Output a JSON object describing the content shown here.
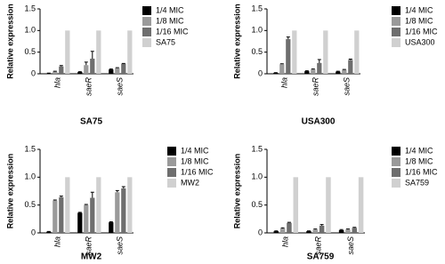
{
  "chart_data": [
    {
      "type": "bar",
      "title": "SA75",
      "y_label": "Relative expression",
      "categories": [
        "hla",
        "saeR",
        "saeS"
      ],
      "series": [
        {
          "name": "1/4 MIC",
          "color": "#000000",
          "values": [
            0.01,
            0.04,
            0.1
          ],
          "errors": [
            0.005,
            0.01,
            0.01
          ]
        },
        {
          "name": "1/8 MIC",
          "color": "#9a9a9a",
          "values": [
            0.05,
            0.2,
            0.13
          ],
          "errors": [
            0.01,
            0.07,
            0.01
          ]
        },
        {
          "name": "1/16 MIC",
          "color": "#6e6e6e",
          "values": [
            0.17,
            0.35,
            0.23
          ],
          "errors": [
            0.02,
            0.17,
            0.01
          ]
        },
        {
          "name": "SA75",
          "color": "#d0d0d0",
          "values": [
            1,
            1,
            1
          ]
        }
      ],
      "ylim": [
        0,
        1.5
      ],
      "yticks": [
        0,
        0.5,
        {
          "value": 1,
          "label": "1.0"
        },
        1.5
      ]
    },
    {
      "type": "bar",
      "title": "USA300",
      "y_label": "Relative expression",
      "categories": [
        "hla",
        "saeR",
        "saeS"
      ],
      "series": [
        {
          "name": "1/4 MIC",
          "color": "#000000",
          "values": [
            0.02,
            0.06,
            0.05
          ],
          "errors": [
            0.005,
            0.01,
            0.01
          ]
        },
        {
          "name": "1/8 MIC",
          "color": "#9a9a9a",
          "values": [
            0.22,
            0.1,
            0.09
          ],
          "errors": [
            0.01,
            0.01,
            0.01
          ]
        },
        {
          "name": "1/16 MIC",
          "color": "#6e6e6e",
          "values": [
            0.8,
            0.25,
            0.32
          ],
          "errors": [
            0.05,
            0.08,
            0.02
          ]
        },
        {
          "name": "USA300",
          "color": "#d0d0d0",
          "values": [
            1,
            1,
            1
          ]
        }
      ],
      "ylim": [
        0,
        1.5
      ],
      "yticks": [
        0,
        0.5,
        {
          "value": 1,
          "label": "1.0"
        },
        1.5
      ]
    },
    {
      "type": "bar",
      "title": "MW2",
      "y_label": "Relative expression",
      "categories": [
        "hla",
        "saeR",
        "saeS"
      ],
      "series": [
        {
          "name": "1/4 MIC",
          "color": "#000000",
          "values": [
            0.02,
            0.36,
            0.19
          ],
          "errors": [
            0.005,
            0.01,
            0.01
          ]
        },
        {
          "name": "1/8 MIC",
          "color": "#9a9a9a",
          "values": [
            0.58,
            0.5,
            0.73
          ],
          "errors": [
            0.01,
            0.01,
            0.03
          ]
        },
        {
          "name": "1/16 MIC",
          "color": "#6e6e6e",
          "values": [
            0.64,
            0.63,
            0.8
          ],
          "errors": [
            0.02,
            0.1,
            0.03
          ]
        },
        {
          "name": "MW2",
          "color": "#d0d0d0",
          "values": [
            1,
            1,
            1
          ]
        }
      ],
      "ylim": [
        0,
        1.5
      ],
      "yticks": [
        0,
        0.5,
        {
          "value": 1,
          "label": "1.0"
        },
        1.5
      ]
    },
    {
      "type": "bar",
      "title": "SA759",
      "y_label": "Relative expression",
      "categories": [
        "hla",
        "saeR",
        "saeS"
      ],
      "series": [
        {
          "name": "1/4 MIC",
          "color": "#000000",
          "values": [
            0.03,
            0.03,
            0.05
          ],
          "errors": [
            0.005,
            0.005,
            0.01
          ]
        },
        {
          "name": "1/8 MIC",
          "color": "#9a9a9a",
          "values": [
            0.08,
            0.06,
            0.06
          ],
          "errors": [
            0.01,
            0.01,
            0.01
          ]
        },
        {
          "name": "1/16 MIC",
          "color": "#6e6e6e",
          "values": [
            0.18,
            0.13,
            0.09
          ],
          "errors": [
            0.01,
            0.02,
            0.01
          ]
        },
        {
          "name": "SA759",
          "color": "#d0d0d0",
          "values": [
            1,
            1,
            1
          ]
        }
      ],
      "ylim": [
        0,
        1.5
      ],
      "yticks": [
        0,
        0.5,
        {
          "value": 1,
          "label": "1.0"
        },
        1.5
      ]
    }
  ]
}
